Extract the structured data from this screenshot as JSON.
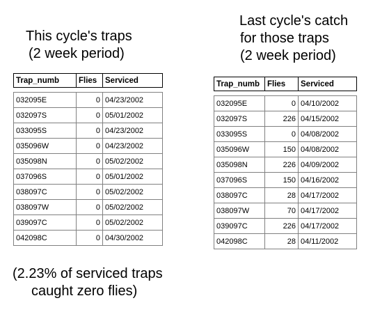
{
  "left": {
    "title_line1": "This cycle's traps",
    "title_line2": "(2 week period)",
    "headers": [
      "Trap_numb",
      "Flies",
      "Serviced"
    ],
    "rows": [
      [
        "032095E",
        "0",
        "04/23/2002"
      ],
      [
        "032097S",
        "0",
        "05/01/2002"
      ],
      [
        "033095S",
        "0",
        "04/23/2002"
      ],
      [
        "035096W",
        "0",
        "04/23/2002"
      ],
      [
        "035098N",
        "0",
        "05/02/2002"
      ],
      [
        "037096S",
        "0",
        "05/01/2002"
      ],
      [
        "038097C",
        "0",
        "05/02/2002"
      ],
      [
        "038097W",
        "0",
        "05/02/2002"
      ],
      [
        "039097C",
        "0",
        "05/02/2002"
      ],
      [
        "042098C",
        "0",
        "04/30/2002"
      ]
    ]
  },
  "right": {
    "title_line1": "Last cycle's catch",
    "title_line2": "for those traps",
    "title_line3": "(2 week period)",
    "headers": [
      "Trap_numb",
      "Flies",
      "Serviced"
    ],
    "rows": [
      [
        "032095E",
        "0",
        "04/10/2002"
      ],
      [
        "032097S",
        "226",
        "04/15/2002"
      ],
      [
        "033095S",
        "0",
        "04/08/2002"
      ],
      [
        "035096W",
        "150",
        "04/08/2002"
      ],
      [
        "035098N",
        "226",
        "04/09/2002"
      ],
      [
        "037096S",
        "150",
        "04/16/2002"
      ],
      [
        "038097C",
        "28",
        "04/17/2002"
      ],
      [
        "038097W",
        "70",
        "04/17/2002"
      ],
      [
        "039097C",
        "226",
        "04/17/2002"
      ],
      [
        "042098C",
        "28",
        "04/11/2002"
      ]
    ]
  },
  "footnote": {
    "line1": "(2.23% of serviced traps",
    "line2": "caught zero flies)"
  }
}
